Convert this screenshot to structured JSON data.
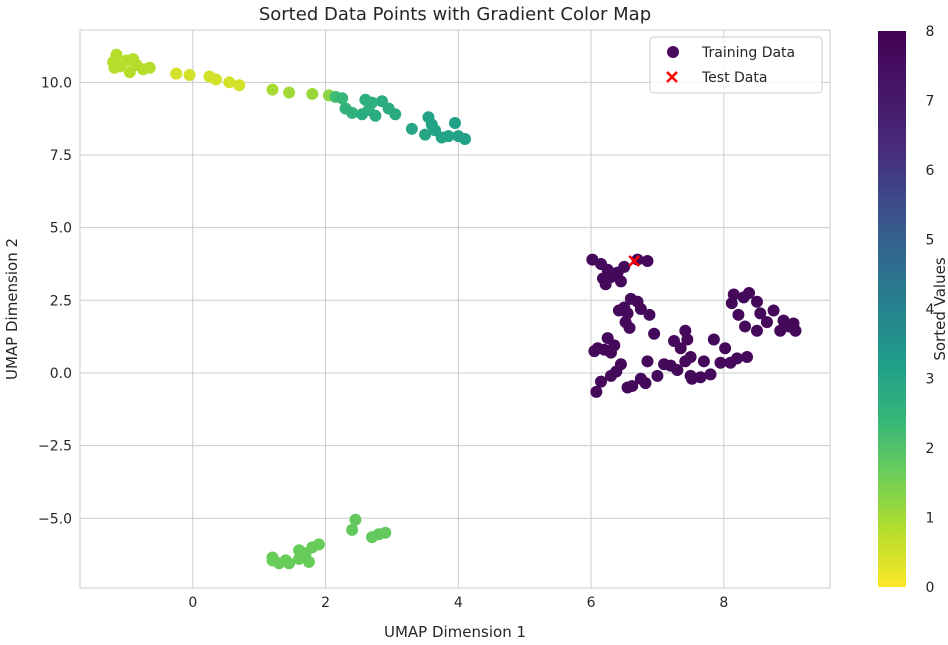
{
  "chart_data": {
    "type": "scatter",
    "title": "Sorted Data Points with Gradient Color Map",
    "xlabel": "UMAP Dimension 1",
    "ylabel": "UMAP Dimension 2",
    "xlim": [
      -1.7,
      9.6
    ],
    "ylim": [
      -7.4,
      11.8
    ],
    "xticks": [
      0,
      2,
      4,
      6,
      8
    ],
    "yticks": [
      -5.0,
      -2.5,
      0.0,
      2.5,
      5.0,
      7.5,
      10.0
    ],
    "xtick_labels": [
      "0",
      "2",
      "4",
      "6",
      "8"
    ],
    "ytick_labels": [
      "−5.0",
      "−2.5",
      "0.0",
      "2.5",
      "5.0",
      "7.5",
      "10.0"
    ],
    "grid": true,
    "legend": {
      "placement": "top-right",
      "entries": [
        {
          "label": "Training Data",
          "marker": "circle",
          "color": "#4b0a5e"
        },
        {
          "label": "Test Data",
          "marker": "x",
          "color": "#ff0000"
        }
      ]
    },
    "colorbar": {
      "label": "Sorted Values",
      "colormap": "viridis_r",
      "range": [
        0,
        8
      ],
      "ticks": [
        "0",
        "1",
        "2",
        "3",
        "4",
        "5",
        "6",
        "7",
        "8"
      ]
    },
    "series": [
      {
        "name": "Training Data",
        "marker": "circle",
        "points": [
          [
            -1.15,
            10.95,
            1.0
          ],
          [
            -1.2,
            10.7,
            1.0
          ],
          [
            -1.1,
            10.55,
            1.0
          ],
          [
            -1.0,
            10.75,
            1.0
          ],
          [
            -0.9,
            10.8,
            1.0
          ],
          [
            -0.85,
            10.6,
            1.0
          ],
          [
            -0.75,
            10.45,
            1.0
          ],
          [
            -0.95,
            10.35,
            1.0
          ],
          [
            -0.65,
            10.5,
            1.0
          ],
          [
            -1.18,
            10.5,
            1.0
          ],
          [
            -0.25,
            10.3,
            0.6
          ],
          [
            -0.05,
            10.25,
            0.6
          ],
          [
            0.25,
            10.2,
            0.6
          ],
          [
            0.35,
            10.1,
            0.6
          ],
          [
            0.55,
            10.0,
            0.6
          ],
          [
            0.7,
            9.9,
            0.6
          ],
          [
            1.2,
            9.75,
            1.2
          ],
          [
            1.45,
            9.65,
            1.3
          ],
          [
            1.8,
            9.6,
            1.4
          ],
          [
            2.05,
            9.55,
            1.6
          ],
          [
            2.15,
            9.5,
            2.8
          ],
          [
            2.25,
            9.45,
            3.0
          ],
          [
            2.3,
            9.1,
            3.2
          ],
          [
            2.4,
            8.95,
            3.2
          ],
          [
            2.6,
            9.4,
            3.3
          ],
          [
            2.7,
            9.3,
            3.3
          ],
          [
            2.65,
            9.05,
            3.3
          ],
          [
            2.85,
            9.35,
            3.4
          ],
          [
            2.55,
            8.9,
            3.4
          ],
          [
            2.75,
            8.85,
            3.4
          ],
          [
            2.95,
            9.1,
            3.5
          ],
          [
            3.05,
            8.9,
            3.5
          ],
          [
            3.3,
            8.4,
            3.7
          ],
          [
            3.5,
            8.2,
            3.7
          ],
          [
            3.55,
            8.8,
            3.8
          ],
          [
            3.65,
            8.35,
            3.8
          ],
          [
            3.75,
            8.1,
            3.8
          ],
          [
            3.85,
            8.15,
            3.8
          ],
          [
            3.95,
            8.6,
            3.9
          ],
          [
            4.0,
            8.15,
            3.9
          ],
          [
            4.1,
            8.05,
            3.9
          ],
          [
            3.6,
            8.55,
            3.8
          ],
          [
            1.2,
            -6.45,
            2.1
          ],
          [
            1.3,
            -6.55,
            2.1
          ],
          [
            1.4,
            -6.45,
            2.1
          ],
          [
            1.45,
            -6.55,
            2.1
          ],
          [
            1.6,
            -6.1,
            2.1
          ],
          [
            1.6,
            -6.4,
            2.1
          ],
          [
            1.7,
            -6.2,
            2.1
          ],
          [
            1.75,
            -6.5,
            2.1
          ],
          [
            1.8,
            -6.0,
            2.1
          ],
          [
            1.9,
            -5.9,
            2.1
          ],
          [
            2.4,
            -5.4,
            2.2
          ],
          [
            2.45,
            -5.05,
            2.2
          ],
          [
            2.7,
            -5.65,
            2.2
          ],
          [
            2.8,
            -5.55,
            2.2
          ],
          [
            2.9,
            -5.5,
            2.2
          ],
          [
            1.2,
            -6.35,
            2.1
          ],
          [
            6.02,
            3.9,
            7.9
          ],
          [
            6.15,
            3.75,
            7.9
          ],
          [
            6.25,
            3.55,
            7.9
          ],
          [
            6.18,
            3.25,
            7.9
          ],
          [
            6.3,
            3.3,
            7.9
          ],
          [
            6.22,
            3.05,
            7.9
          ],
          [
            6.4,
            3.45,
            7.9
          ],
          [
            6.45,
            3.15,
            7.9
          ],
          [
            6.5,
            3.65,
            7.9
          ],
          [
            6.7,
            3.9,
            7.9
          ],
          [
            6.85,
            3.85,
            7.9
          ],
          [
            6.6,
            2.55,
            7.9
          ],
          [
            6.7,
            2.45,
            7.9
          ],
          [
            6.5,
            2.25,
            7.9
          ],
          [
            6.42,
            2.15,
            7.9
          ],
          [
            6.55,
            2.05,
            7.9
          ],
          [
            6.75,
            2.2,
            7.9
          ],
          [
            6.88,
            2.0,
            7.9
          ],
          [
            6.95,
            1.35,
            7.9
          ],
          [
            6.25,
            1.2,
            7.9
          ],
          [
            6.35,
            0.95,
            7.9
          ],
          [
            6.2,
            0.8,
            7.9
          ],
          [
            6.05,
            0.75,
            7.9
          ],
          [
            6.1,
            0.85,
            7.9
          ],
          [
            6.3,
            0.7,
            7.9
          ],
          [
            6.52,
            1.75,
            7.9
          ],
          [
            6.58,
            1.55,
            7.9
          ],
          [
            6.45,
            0.3,
            7.9
          ],
          [
            6.38,
            0.05,
            7.9
          ],
          [
            6.15,
            -0.3,
            7.9
          ],
          [
            6.08,
            -0.65,
            7.9
          ],
          [
            6.3,
            -0.1,
            7.9
          ],
          [
            6.55,
            -0.5,
            7.9
          ],
          [
            6.62,
            -0.45,
            7.9
          ],
          [
            6.75,
            -0.2,
            7.9
          ],
          [
            6.85,
            0.4,
            7.9
          ],
          [
            6.82,
            -0.35,
            7.9
          ],
          [
            7.0,
            -0.1,
            7.9
          ],
          [
            7.1,
            0.3,
            7.9
          ],
          [
            7.2,
            0.25,
            7.9
          ],
          [
            7.3,
            0.1,
            7.9
          ],
          [
            7.25,
            1.1,
            7.9
          ],
          [
            7.35,
            0.85,
            7.9
          ],
          [
            7.42,
            1.45,
            7.9
          ],
          [
            7.45,
            1.15,
            7.9
          ],
          [
            7.5,
            0.55,
            7.9
          ],
          [
            7.42,
            0.4,
            7.9
          ],
          [
            7.5,
            -0.1,
            7.9
          ],
          [
            7.52,
            -0.2,
            7.9
          ],
          [
            7.65,
            -0.15,
            7.9
          ],
          [
            7.7,
            0.4,
            7.9
          ],
          [
            7.8,
            -0.05,
            7.9
          ],
          [
            7.85,
            1.15,
            7.9
          ],
          [
            7.95,
            0.35,
            7.9
          ],
          [
            8.02,
            0.85,
            7.9
          ],
          [
            8.1,
            0.35,
            7.9
          ],
          [
            8.15,
            2.7,
            7.9
          ],
          [
            8.12,
            2.4,
            7.9
          ],
          [
            8.22,
            2.0,
            7.9
          ],
          [
            8.3,
            2.6,
            7.9
          ],
          [
            8.38,
            2.75,
            7.9
          ],
          [
            8.32,
            1.6,
            7.9
          ],
          [
            8.2,
            0.5,
            7.9
          ],
          [
            8.35,
            0.55,
            7.9
          ],
          [
            8.5,
            2.45,
            7.9
          ],
          [
            8.55,
            2.05,
            7.9
          ],
          [
            8.65,
            1.75,
            7.9
          ],
          [
            8.75,
            2.15,
            7.9
          ],
          [
            8.85,
            1.45,
            7.9
          ],
          [
            8.9,
            1.8,
            7.9
          ],
          [
            8.98,
            1.6,
            7.9
          ],
          [
            9.05,
            1.7,
            7.9
          ],
          [
            9.08,
            1.45,
            7.9
          ],
          [
            8.5,
            1.45,
            7.9
          ]
        ]
      },
      {
        "name": "Test Data",
        "marker": "x",
        "points": [
          [
            6.65,
            3.85
          ]
        ]
      }
    ]
  }
}
